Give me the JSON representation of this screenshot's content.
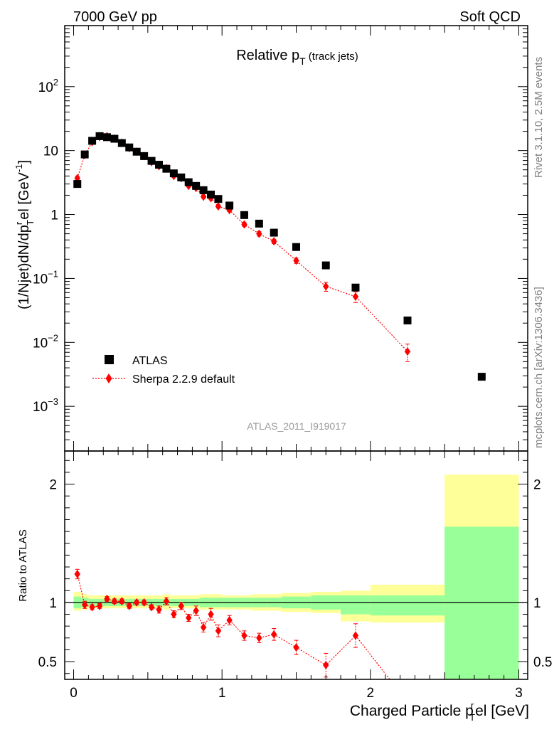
{
  "header": {
    "left": "7000 GeV pp",
    "right": "Soft QCD"
  },
  "side_labels": {
    "rivet": "Rivet 3.1.10,  2.5M events",
    "mcplots": "mcplots.cern.ch [arXiv:1306.3436]"
  },
  "chart_data": {
    "type": "scatter",
    "title": {
      "main": "Relative p",
      "sub": "T",
      "suffix": "(track jets)"
    },
    "analysis_id": "ATLAS_2011_I919017",
    "ylabel_main": "(1/Njet)dN/dp",
    "ylabel_sup_r": "r",
    "ylabel_sub_t": "T",
    "ylabel_rest": "el [GeV",
    "ylabel_exp": "-1",
    "ylabel_close": "]",
    "ylabel_ratio": "Ratio to ATLAS",
    "xlabel_main": "Charged Particle p",
    "xlabel_sup": "r",
    "xlabel_sub": "T",
    "xlabel_rest": "el [GeV]",
    "xlim": [
      -0.06,
      3.06
    ],
    "ylim_main": [
      0.0002,
      900
    ],
    "ylog": true,
    "ylim_ratio": [
      0.35,
      2.28
    ],
    "x_ticks": [
      "0",
      "1",
      "2",
      "3"
    ],
    "y_ticks_main": [
      {
        "v": 100,
        "base": "10",
        "exp": "2"
      },
      {
        "v": 10,
        "base": "10",
        "exp": ""
      },
      {
        "v": 1,
        "base": "1",
        "exp": ""
      },
      {
        "v": 0.1,
        "base": "10",
        "exp": "−1"
      },
      {
        "v": 0.01,
        "base": "10",
        "exp": "−2"
      },
      {
        "v": 0.001,
        "base": "10",
        "exp": "−3"
      }
    ],
    "y_ticks_ratio": [
      {
        "v": 0.5,
        "label": "0.5"
      },
      {
        "v": 1,
        "label": "1"
      },
      {
        "v": 2,
        "label": "2"
      }
    ],
    "legend": [
      {
        "name": "ATLAS",
        "marker": "square",
        "color": "#000000"
      },
      {
        "name": "Sherpa 2.2.9 default",
        "marker": "diamond",
        "color": "#ff0000"
      }
    ],
    "series": [
      {
        "name": "ATLAS",
        "color": "#000000",
        "x": [
          0.025,
          0.075,
          0.125,
          0.175,
          0.225,
          0.275,
          0.325,
          0.375,
          0.425,
          0.475,
          0.525,
          0.575,
          0.625,
          0.675,
          0.725,
          0.775,
          0.825,
          0.875,
          0.925,
          0.975,
          1.05,
          1.15,
          1.25,
          1.35,
          1.5,
          1.7,
          1.9,
          2.25,
          2.75
        ],
        "y": [
          3.0,
          8.7,
          14.2,
          16.8,
          16.2,
          15.3,
          13.1,
          11.2,
          9.6,
          8.2,
          6.9,
          6.0,
          5.2,
          4.4,
          3.8,
          3.2,
          2.8,
          2.4,
          2.05,
          1.75,
          1.38,
          0.98,
          0.72,
          0.52,
          0.31,
          0.16,
          0.072,
          0.022,
          0.0029
        ]
      },
      {
        "name": "Sherpa 2.2.9 default",
        "color": "#ff0000",
        "x": [
          0.025,
          0.075,
          0.125,
          0.175,
          0.225,
          0.275,
          0.325,
          0.375,
          0.425,
          0.475,
          0.525,
          0.575,
          0.625,
          0.675,
          0.725,
          0.775,
          0.825,
          0.875,
          0.925,
          0.975,
          1.05,
          1.15,
          1.25,
          1.35,
          1.5,
          1.7,
          1.9,
          2.25
        ],
        "y": [
          3.7,
          8.5,
          13.6,
          16.3,
          16.8,
          15.4,
          13.3,
          10.9,
          9.6,
          8.2,
          6.6,
          5.7,
          5.3,
          4.0,
          3.7,
          2.8,
          2.6,
          1.9,
          1.8,
          1.34,
          1.17,
          0.7,
          0.5,
          0.38,
          0.19,
          0.075,
          0.052,
          0.0072
        ],
        "yerr": [
          0.25,
          0.4,
          0.5,
          0.5,
          0.5,
          0.45,
          0.4,
          0.35,
          0.3,
          0.28,
          0.24,
          0.21,
          0.2,
          0.16,
          0.15,
          0.12,
          0.12,
          0.1,
          0.1,
          0.08,
          0.06,
          0.05,
          0.04,
          0.03,
          0.018,
          0.012,
          0.01,
          0.0022
        ]
      }
    ],
    "ratio": {
      "reference": 1.0,
      "x": [
        0.025,
        0.075,
        0.125,
        0.175,
        0.225,
        0.275,
        0.325,
        0.375,
        0.425,
        0.475,
        0.525,
        0.575,
        0.625,
        0.675,
        0.725,
        0.775,
        0.825,
        0.875,
        0.925,
        0.975,
        1.05,
        1.15,
        1.25,
        1.35,
        1.5,
        1.7,
        1.9
      ],
      "y": [
        1.24,
        0.98,
        0.96,
        0.97,
        1.03,
        1.01,
        1.01,
        0.97,
        1.0,
        1.0,
        0.96,
        0.94,
        1.01,
        0.9,
        0.97,
        0.87,
        0.93,
        0.79,
        0.9,
        0.76,
        0.85,
        0.72,
        0.7,
        0.73,
        0.62,
        0.47,
        0.72
      ],
      "yerr": [
        0.04,
        0.03,
        0.02,
        0.02,
        0.02,
        0.02,
        0.02,
        0.02,
        0.02,
        0.02,
        0.02,
        0.03,
        0.03,
        0.03,
        0.03,
        0.03,
        0.04,
        0.04,
        0.05,
        0.05,
        0.04,
        0.04,
        0.04,
        0.05,
        0.06,
        0.1,
        0.1
      ],
      "tail_to": [
        2.13,
        0.35
      ],
      "bands": [
        {
          "x0": 0.0,
          "x1": 0.05,
          "g_lo": 0.95,
          "g_hi": 1.05,
          "y_lo": 0.93,
          "y_hi": 1.09
        },
        {
          "x0": 0.05,
          "x1": 0.1,
          "g_lo": 0.96,
          "g_hi": 1.04,
          "y_lo": 0.94,
          "y_hi": 1.07
        },
        {
          "x0": 0.1,
          "x1": 0.15,
          "g_lo": 0.97,
          "g_hi": 1.03,
          "y_lo": 0.95,
          "y_hi": 1.06
        },
        {
          "x0": 0.15,
          "x1": 0.6,
          "g_lo": 0.97,
          "g_hi": 1.03,
          "y_lo": 0.95,
          "y_hi": 1.06
        },
        {
          "x0": 0.6,
          "x1": 0.65,
          "g_lo": 0.97,
          "g_hi": 1.03,
          "y_lo": 0.94,
          "y_hi": 1.07
        },
        {
          "x0": 0.65,
          "x1": 0.85,
          "g_lo": 0.97,
          "g_hi": 1.03,
          "y_lo": 0.95,
          "y_hi": 1.06
        },
        {
          "x0": 0.85,
          "x1": 1.0,
          "g_lo": 0.96,
          "g_hi": 1.04,
          "y_lo": 0.94,
          "y_hi": 1.07
        },
        {
          "x0": 1.0,
          "x1": 1.1,
          "g_lo": 0.96,
          "g_hi": 1.04,
          "y_lo": 0.94,
          "y_hi": 1.06
        },
        {
          "x0": 1.1,
          "x1": 1.2,
          "g_lo": 0.96,
          "g_hi": 1.04,
          "y_lo": 0.94,
          "y_hi": 1.06
        },
        {
          "x0": 1.2,
          "x1": 1.3,
          "g_lo": 0.96,
          "g_hi": 1.04,
          "y_lo": 0.93,
          "y_hi": 1.07
        },
        {
          "x0": 1.3,
          "x1": 1.4,
          "g_lo": 0.96,
          "g_hi": 1.04,
          "y_lo": 0.93,
          "y_hi": 1.07
        },
        {
          "x0": 1.4,
          "x1": 1.6,
          "g_lo": 0.95,
          "g_hi": 1.05,
          "y_lo": 0.92,
          "y_hi": 1.08
        },
        {
          "x0": 1.6,
          "x1": 1.8,
          "g_lo": 0.94,
          "g_hi": 1.06,
          "y_lo": 0.91,
          "y_hi": 1.09
        },
        {
          "x0": 1.8,
          "x1": 2.0,
          "g_lo": 0.9,
          "g_hi": 1.06,
          "y_lo": 0.84,
          "y_hi": 1.1
        },
        {
          "x0": 2.0,
          "x1": 2.5,
          "g_lo": 0.89,
          "g_hi": 1.06,
          "y_lo": 0.83,
          "y_hi": 1.15
        },
        {
          "x0": 2.5,
          "x1": 3.0,
          "g_lo": 0.35,
          "g_hi": 1.64,
          "y_lo": 0.35,
          "y_hi": 2.08
        }
      ]
    },
    "colors": {
      "band_inner": "#99ff99",
      "band_outer": "#ffff99",
      "data": "#000000",
      "mc": "#ff0000",
      "analysis_label": "#999999",
      "side_text": "#808080"
    }
  }
}
